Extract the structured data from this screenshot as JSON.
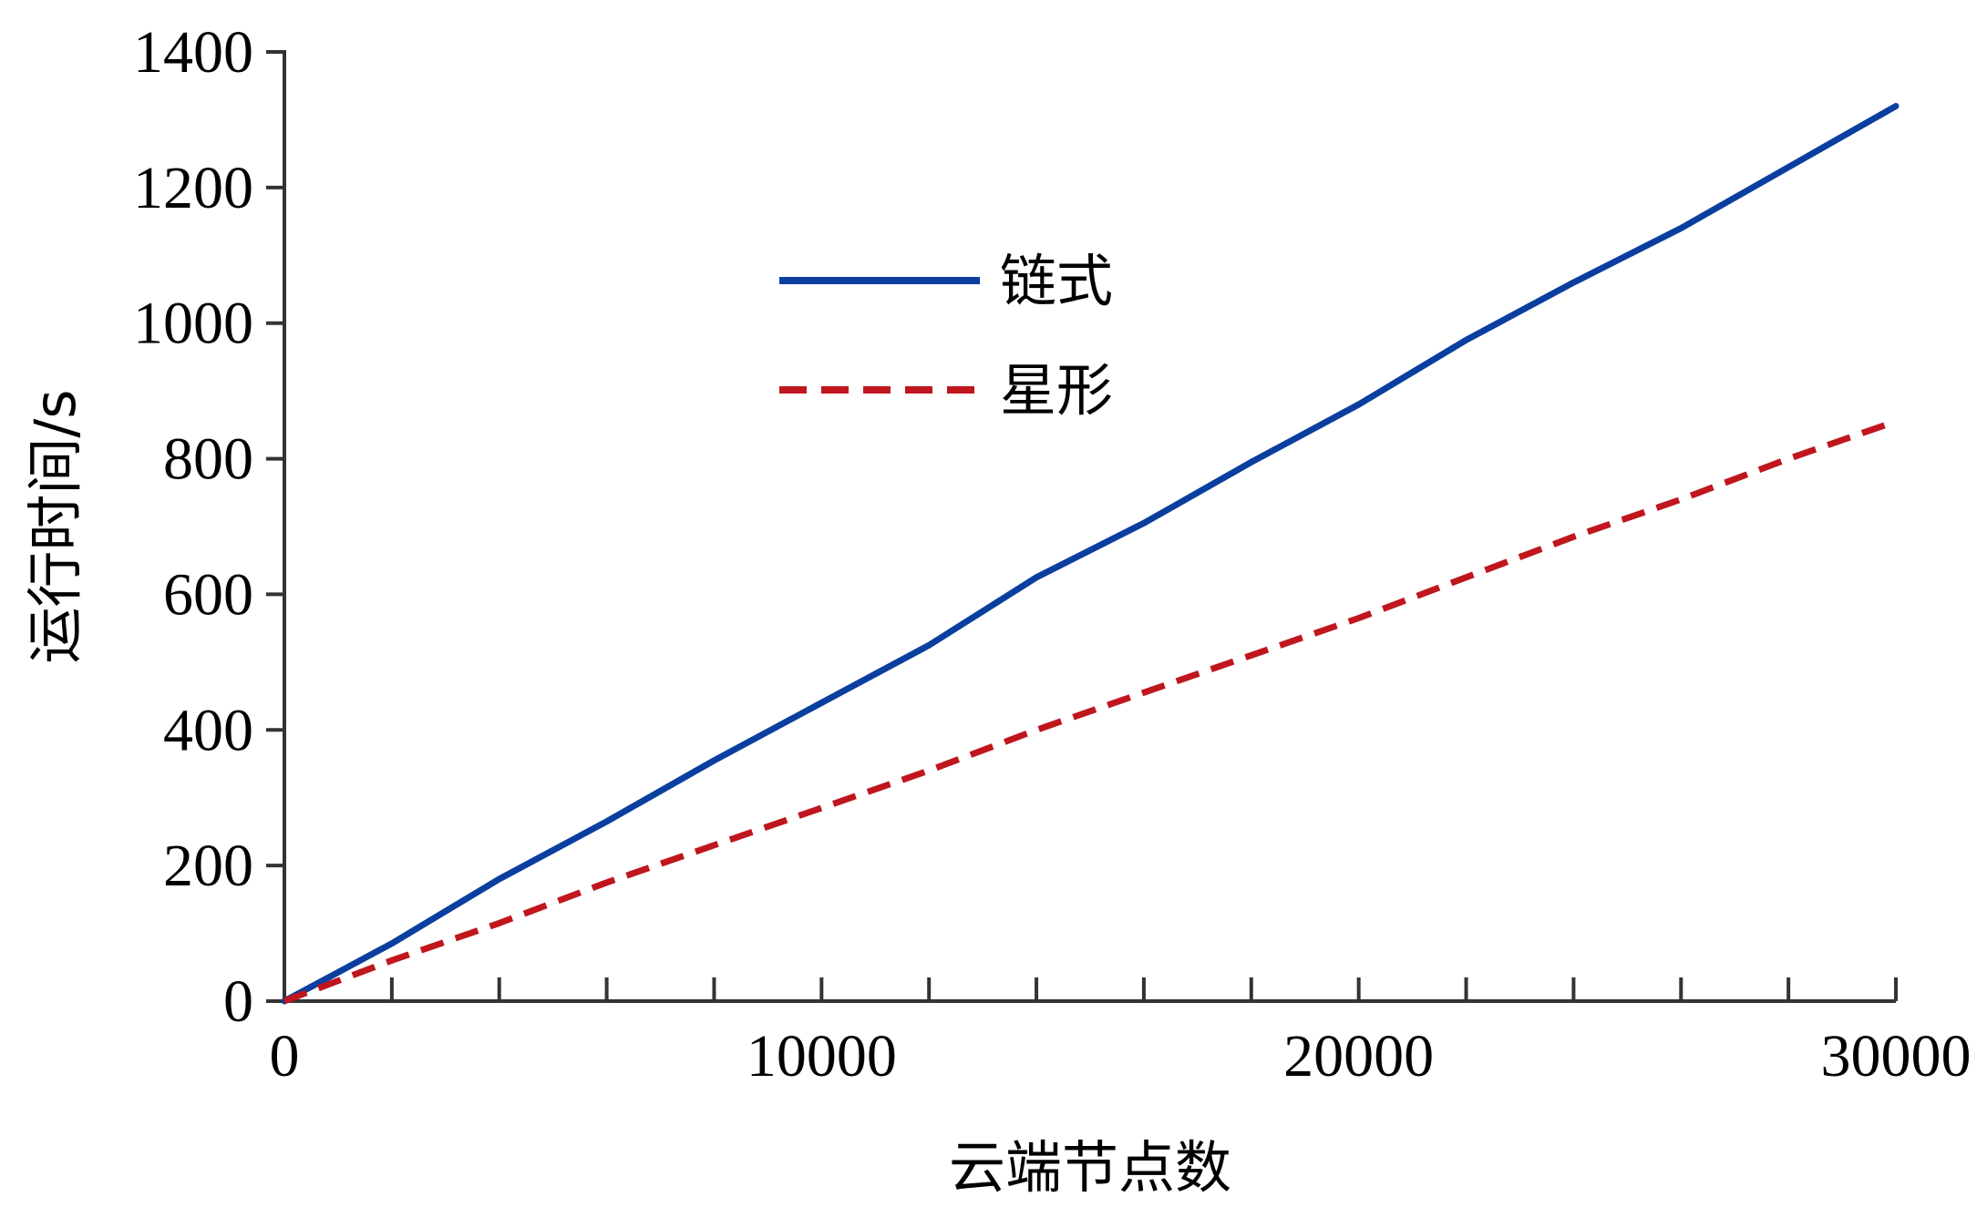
{
  "chart_data": {
    "type": "line",
    "xlabel": "云端节点数",
    "ylabel": "运行时间/s",
    "xlim": [
      0,
      30000
    ],
    "ylim": [
      0,
      1400
    ],
    "x_ticks": [
      0,
      10000,
      20000,
      30000
    ],
    "y_ticks": [
      0,
      200,
      400,
      600,
      800,
      1000,
      1200,
      1400
    ],
    "x_minor_tick_step": 2000,
    "grid": false,
    "legend_position": "upper-center",
    "series": [
      {
        "name": "链式",
        "color": "#0a3fa0",
        "style": "solid",
        "x": [
          0,
          2000,
          4000,
          6000,
          8000,
          10000,
          12000,
          14000,
          16000,
          18000,
          20000,
          22000,
          24000,
          26000,
          28000,
          30000
        ],
        "y": [
          0,
          85,
          180,
          265,
          355,
          440,
          525,
          625,
          705,
          795,
          880,
          975,
          1060,
          1140,
          1230,
          1320
        ]
      },
      {
        "name": "星形",
        "color": "#c0161d",
        "style": "dashed",
        "x": [
          0,
          2000,
          4000,
          6000,
          8000,
          10000,
          12000,
          14000,
          16000,
          18000,
          20000,
          22000,
          24000,
          26000,
          28000,
          30000
        ],
        "y": [
          0,
          60,
          115,
          175,
          230,
          285,
          340,
          400,
          455,
          510,
          565,
          625,
          685,
          740,
          800,
          855
        ]
      }
    ]
  }
}
